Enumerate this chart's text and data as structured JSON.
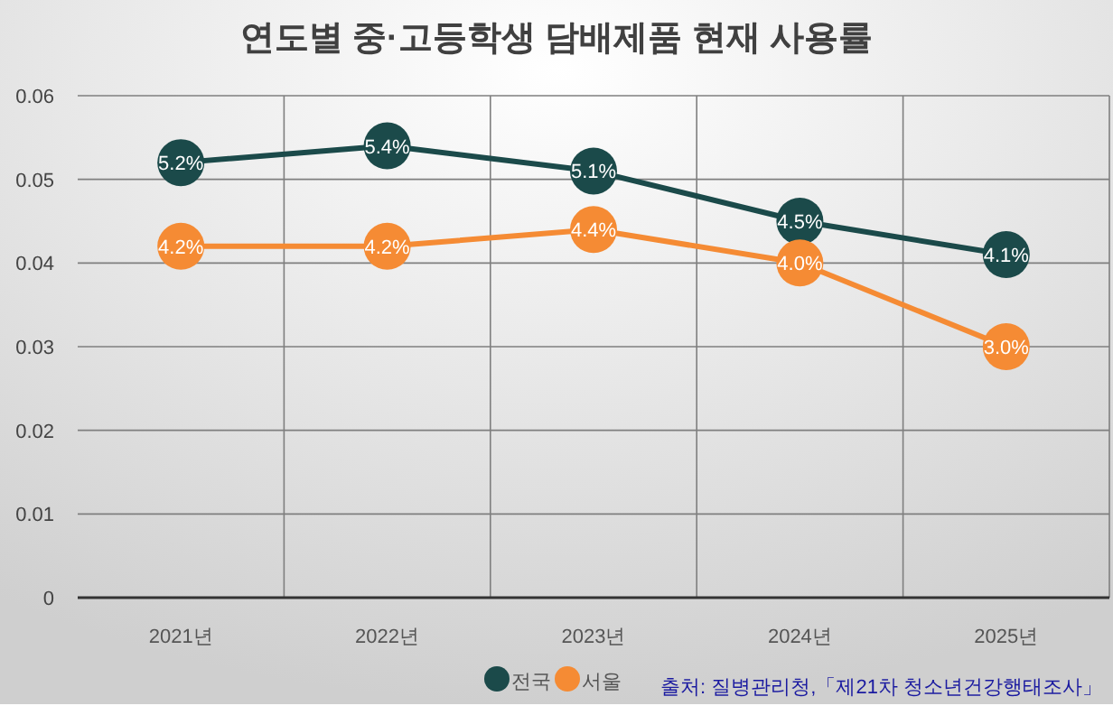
{
  "chart_data": {
    "type": "line",
    "title": "연도별 중·고등학생 담배제품 현재 사용률",
    "categories": [
      "2021년",
      "2022년",
      "2023년",
      "2024년",
      "2025년"
    ],
    "series": [
      {
        "name": "전국",
        "color": "#1b4a4a",
        "values": [
          0.052,
          0.054,
          0.051,
          0.045,
          0.041
        ],
        "value_labels": [
          "5.2%",
          "5.4%",
          "5.1%",
          "4.5%",
          "4.1%"
        ]
      },
      {
        "name": "서울",
        "color": "#f58b34",
        "values": [
          0.042,
          0.042,
          0.044,
          0.04,
          0.03
        ],
        "value_labels": [
          "4.2%",
          "4.2%",
          "4.4%",
          "4.0%",
          "3.0%"
        ]
      }
    ],
    "ylim": [
      0,
      0.06
    ],
    "yticks": [
      {
        "value": 0,
        "label": "0"
      },
      0.01,
      0.02,
      0.03,
      0.04,
      0.05,
      0.06
    ],
    "grid": true,
    "legend": "bottom",
    "marker": "circle",
    "line_style": "solid",
    "annotations": [
      "출처: 질병관리청,「제21차 청소년건강행태조사」"
    ]
  }
}
